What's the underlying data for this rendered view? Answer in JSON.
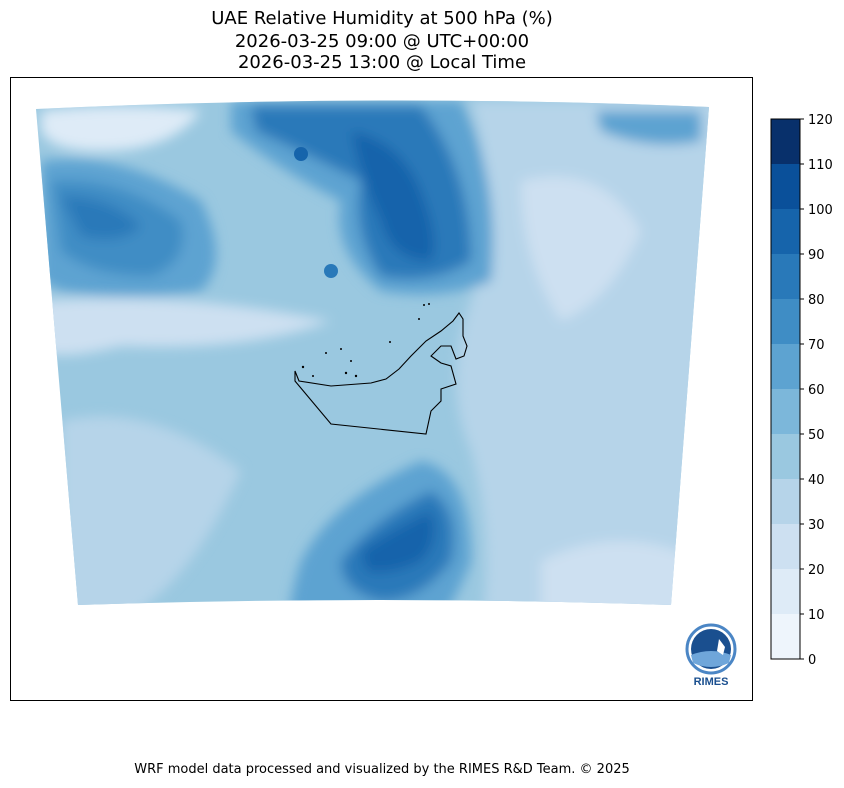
{
  "title": {
    "line1": "UAE Relative Humidity at 500 hPa (%)",
    "line2": "2026-03-25 09:00 @ UTC+00:00",
    "line3": "2026-03-25 13:00 @ Local Time"
  },
  "footer": "WRF model data processed and visualized by the RIMES R&D Team. © 2025",
  "logo": {
    "text": "RIMES",
    "ring_text": "Regional Integrated Multi-Hazard Early Warning System"
  },
  "chart_data": {
    "type": "heatmap",
    "title": "UAE Relative Humidity at 500 hPa (%)",
    "variable": "Relative Humidity (%)",
    "colorbar": {
      "levels": [
        0,
        10,
        20,
        30,
        40,
        50,
        60,
        70,
        80,
        90,
        100,
        110,
        120
      ],
      "tick_labels": [
        "0",
        "10",
        "20",
        "30",
        "40",
        "50",
        "60",
        "70",
        "80",
        "90",
        "100",
        "110",
        "120"
      ],
      "colors": [
        "#eef5fc",
        "#deebf7",
        "#cde0f1",
        "#b6d4e9",
        "#9ac8e0",
        "#7cb7da",
        "#5da3d1",
        "#3f8dc5",
        "#2979b9",
        "#1664ab",
        "#0a509a",
        "#08306b"
      ]
    },
    "features": [
      "High humidity (80-100%) over north-central Gulf",
      "High humidity (70-90%) over northwest",
      "High humidity (60-100%) over southern region",
      "Mostly 30-50% over UAE"
    ]
  }
}
